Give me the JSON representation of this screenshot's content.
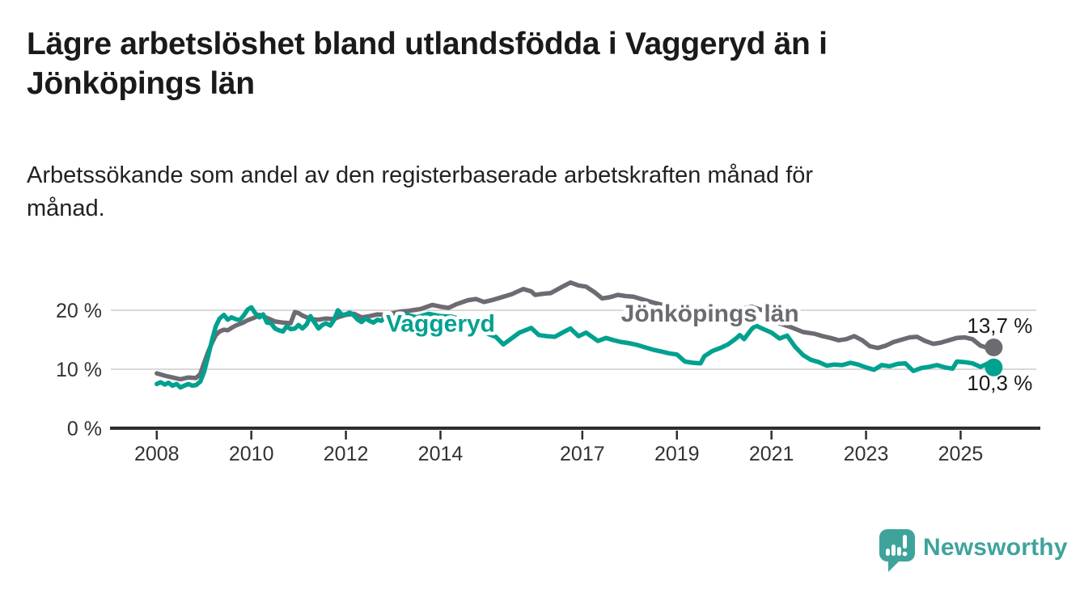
{
  "page": {
    "title": "Lägre arbetslöshet bland utlandsfödda i Vaggeryd än i Jönköpings län",
    "title_lines": [
      "Lägre arbetslöshet bland utlandsfödda i Vaggeryd än i",
      "Jönköpings län"
    ],
    "subtitle": "Arbetssökande som andel av den registerbaserade arbetskraften månad för månad.",
    "subtitle_lines": [
      "Arbetssökande som andel av den registerbaserade arbetskraften månad för",
      "månad."
    ]
  },
  "branding": {
    "name": "Newsworthy",
    "icon": "bar-chart-speech-bubble-icon",
    "color": "#3FA39C"
  },
  "colors": {
    "background": "#FFFFFF",
    "title": "#1A1A1A",
    "subtitle": "#222222",
    "axis_line": "#2E2E31",
    "axis_text": "#333333",
    "grid": "#D9D9D9",
    "value_label": "#1A1A1A"
  },
  "chart_data": {
    "type": "line",
    "x_unit": "decimal_year_monthly",
    "xlim": [
      2007.08,
      2026.6
    ],
    "ylim": [
      0,
      26
    ],
    "grid": "horizontal",
    "y_ticks": [
      {
        "value": 0,
        "label": "0 %"
      },
      {
        "value": 10,
        "label": "10 %"
      },
      {
        "value": 20,
        "label": "20 %"
      }
    ],
    "x_ticks": [
      {
        "value": 2008,
        "label": "2008"
      },
      {
        "value": 2010,
        "label": "2010"
      },
      {
        "value": 2012,
        "label": "2012"
      },
      {
        "value": 2014,
        "label": "2014"
      },
      {
        "value": 2017,
        "label": "2017"
      },
      {
        "value": 2019,
        "label": "2019"
      },
      {
        "value": 2021,
        "label": "2021"
      },
      {
        "value": 2023,
        "label": "2023"
      },
      {
        "value": 2025,
        "label": "2025"
      }
    ],
    "series": [
      {
        "name": "Jönköpings län",
        "color": "#6E6A71",
        "label_pos": {
          "x": 2019.7,
          "y": 19.6
        },
        "end_value": 13.7,
        "end_label": "13,7 %",
        "end_label_side": "above",
        "points": [
          [
            2008.0,
            9.3
          ],
          [
            2008.17,
            8.9
          ],
          [
            2008.33,
            8.6
          ],
          [
            2008.5,
            8.3
          ],
          [
            2008.67,
            8.6
          ],
          [
            2008.83,
            8.5
          ],
          [
            2008.92,
            9.2
          ],
          [
            2009.0,
            11.0
          ],
          [
            2009.08,
            12.8
          ],
          [
            2009.17,
            14.5
          ],
          [
            2009.25,
            15.8
          ],
          [
            2009.33,
            16.4
          ],
          [
            2009.42,
            16.7
          ],
          [
            2009.5,
            16.6
          ],
          [
            2009.58,
            17.0
          ],
          [
            2009.67,
            17.4
          ],
          [
            2009.83,
            17.9
          ],
          [
            2009.92,
            18.3
          ],
          [
            2010.08,
            18.8
          ],
          [
            2010.17,
            19.2
          ],
          [
            2010.33,
            18.7
          ],
          [
            2010.5,
            18.1
          ],
          [
            2010.67,
            17.9
          ],
          [
            2010.83,
            17.8
          ],
          [
            2010.92,
            19.7
          ],
          [
            2011.0,
            19.5
          ],
          [
            2011.08,
            19.1
          ],
          [
            2011.17,
            18.8
          ],
          [
            2011.25,
            18.5
          ],
          [
            2011.42,
            18.4
          ],
          [
            2011.58,
            18.6
          ],
          [
            2011.75,
            18.5
          ],
          [
            2011.83,
            18.8
          ],
          [
            2012.0,
            19.2
          ],
          [
            2012.17,
            19.4
          ],
          [
            2012.33,
            18.8
          ],
          [
            2012.5,
            19.0
          ],
          [
            2012.67,
            19.3
          ],
          [
            2012.83,
            19.2
          ],
          [
            2013.0,
            19.5
          ],
          [
            2013.17,
            19.8
          ],
          [
            2013.33,
            19.9
          ],
          [
            2013.58,
            20.2
          ],
          [
            2013.83,
            20.9
          ],
          [
            2014.0,
            20.6
          ],
          [
            2014.17,
            20.4
          ],
          [
            2014.33,
            21.0
          ],
          [
            2014.58,
            21.7
          ],
          [
            2014.75,
            21.9
          ],
          [
            2014.92,
            21.4
          ],
          [
            2015.08,
            21.7
          ],
          [
            2015.25,
            22.1
          ],
          [
            2015.5,
            22.7
          ],
          [
            2015.75,
            23.6
          ],
          [
            2015.92,
            23.2
          ],
          [
            2016.0,
            22.6
          ],
          [
            2016.17,
            22.8
          ],
          [
            2016.33,
            22.9
          ],
          [
            2016.58,
            24.0
          ],
          [
            2016.75,
            24.7
          ],
          [
            2016.92,
            24.2
          ],
          [
            2017.08,
            24.0
          ],
          [
            2017.25,
            23.1
          ],
          [
            2017.42,
            22.0
          ],
          [
            2017.58,
            22.2
          ],
          [
            2017.75,
            22.6
          ],
          [
            2017.92,
            22.4
          ],
          [
            2018.08,
            22.3
          ],
          [
            2018.5,
            21.3
          ],
          [
            2019.0,
            20.3
          ],
          [
            2019.42,
            19.3
          ],
          [
            2019.83,
            18.8
          ],
          [
            2020.08,
            19.3
          ],
          [
            2020.42,
            20.3
          ],
          [
            2020.58,
            20.6
          ],
          [
            2020.92,
            19.7
          ],
          [
            2021.0,
            18.9
          ],
          [
            2021.17,
            17.8
          ],
          [
            2021.42,
            17.1
          ],
          [
            2021.67,
            16.3
          ],
          [
            2021.92,
            16.0
          ],
          [
            2022.08,
            15.6
          ],
          [
            2022.25,
            15.3
          ],
          [
            2022.42,
            14.9
          ],
          [
            2022.58,
            15.1
          ],
          [
            2022.75,
            15.6
          ],
          [
            2022.92,
            14.9
          ],
          [
            2023.08,
            13.9
          ],
          [
            2023.25,
            13.6
          ],
          [
            2023.42,
            14.0
          ],
          [
            2023.58,
            14.6
          ],
          [
            2023.75,
            15.0
          ],
          [
            2023.92,
            15.4
          ],
          [
            2024.08,
            15.5
          ],
          [
            2024.25,
            14.8
          ],
          [
            2024.42,
            14.3
          ],
          [
            2024.58,
            14.5
          ],
          [
            2024.75,
            14.9
          ],
          [
            2024.92,
            15.3
          ],
          [
            2025.08,
            15.4
          ],
          [
            2025.25,
            15.1
          ],
          [
            2025.42,
            14.0
          ],
          [
            2025.58,
            13.6
          ],
          [
            2025.7,
            13.7
          ]
        ]
      },
      {
        "name": "Vaggeryd",
        "color": "#00A18F",
        "label_pos": {
          "x": 2014.0,
          "y": 17.9
        },
        "end_value": 10.3,
        "end_label": "10,3 %",
        "end_label_side": "below",
        "points": [
          [
            2008.0,
            7.5
          ],
          [
            2008.08,
            7.8
          ],
          [
            2008.17,
            7.4
          ],
          [
            2008.25,
            7.7
          ],
          [
            2008.33,
            7.2
          ],
          [
            2008.42,
            7.5
          ],
          [
            2008.5,
            6.9
          ],
          [
            2008.58,
            7.2
          ],
          [
            2008.67,
            7.5
          ],
          [
            2008.75,
            7.2
          ],
          [
            2008.83,
            7.3
          ],
          [
            2008.92,
            7.9
          ],
          [
            2009.0,
            9.5
          ],
          [
            2009.08,
            12.0
          ],
          [
            2009.17,
            15.0
          ],
          [
            2009.25,
            17.3
          ],
          [
            2009.33,
            18.6
          ],
          [
            2009.42,
            19.2
          ],
          [
            2009.5,
            18.4
          ],
          [
            2009.58,
            18.8
          ],
          [
            2009.67,
            18.5
          ],
          [
            2009.75,
            18.3
          ],
          [
            2009.83,
            19.0
          ],
          [
            2009.92,
            20.1
          ],
          [
            2010.0,
            20.5
          ],
          [
            2010.08,
            19.5
          ],
          [
            2010.17,
            18.8
          ],
          [
            2010.25,
            19.3
          ],
          [
            2010.33,
            17.9
          ],
          [
            2010.42,
            17.8
          ],
          [
            2010.5,
            16.9
          ],
          [
            2010.58,
            16.6
          ],
          [
            2010.67,
            16.4
          ],
          [
            2010.75,
            17.3
          ],
          [
            2010.83,
            16.8
          ],
          [
            2010.92,
            16.9
          ],
          [
            2011.0,
            17.5
          ],
          [
            2011.08,
            16.9
          ],
          [
            2011.17,
            17.6
          ],
          [
            2011.25,
            19.0
          ],
          [
            2011.33,
            18.0
          ],
          [
            2011.42,
            16.9
          ],
          [
            2011.5,
            17.5
          ],
          [
            2011.58,
            17.8
          ],
          [
            2011.67,
            17.4
          ],
          [
            2011.75,
            18.4
          ],
          [
            2011.83,
            20.0
          ],
          [
            2011.92,
            19.2
          ],
          [
            2012.0,
            19.3
          ],
          [
            2012.08,
            19.6
          ],
          [
            2012.17,
            19.1
          ],
          [
            2012.25,
            18.4
          ],
          [
            2012.33,
            18.0
          ],
          [
            2012.42,
            18.6
          ],
          [
            2012.5,
            18.2
          ],
          [
            2012.58,
            17.9
          ],
          [
            2012.67,
            18.4
          ],
          [
            2012.75,
            18.2
          ],
          [
            2012.83,
            18.8
          ],
          [
            2013.0,
            18.9
          ],
          [
            2013.25,
            19.3
          ],
          [
            2013.5,
            18.8
          ],
          [
            2013.75,
            19.4
          ],
          [
            2014.0,
            19.0
          ],
          [
            2014.25,
            18.9
          ],
          [
            2014.5,
            18.2
          ],
          [
            2014.75,
            17.0
          ],
          [
            2015.0,
            16.0
          ],
          [
            2015.17,
            15.5
          ],
          [
            2015.33,
            14.2
          ],
          [
            2015.5,
            15.2
          ],
          [
            2015.67,
            16.2
          ],
          [
            2015.92,
            17.0
          ],
          [
            2016.08,
            15.8
          ],
          [
            2016.25,
            15.6
          ],
          [
            2016.42,
            15.5
          ],
          [
            2016.58,
            16.2
          ],
          [
            2016.75,
            16.9
          ],
          [
            2016.92,
            15.6
          ],
          [
            2017.08,
            16.2
          ],
          [
            2017.33,
            14.8
          ],
          [
            2017.5,
            15.3
          ],
          [
            2017.67,
            14.9
          ],
          [
            2017.83,
            14.6
          ],
          [
            2018.0,
            14.4
          ],
          [
            2018.17,
            14.1
          ],
          [
            2018.33,
            13.7
          ],
          [
            2018.5,
            13.3
          ],
          [
            2018.67,
            13.0
          ],
          [
            2018.83,
            12.7
          ],
          [
            2019.0,
            12.5
          ],
          [
            2019.17,
            11.3
          ],
          [
            2019.33,
            11.1
          ],
          [
            2019.5,
            11.0
          ],
          [
            2019.58,
            12.2
          ],
          [
            2019.75,
            13.1
          ],
          [
            2019.92,
            13.6
          ],
          [
            2020.08,
            14.2
          ],
          [
            2020.25,
            15.2
          ],
          [
            2020.33,
            15.8
          ],
          [
            2020.42,
            15.1
          ],
          [
            2020.58,
            16.8
          ],
          [
            2020.67,
            17.4
          ],
          [
            2020.83,
            16.8
          ],
          [
            2021.0,
            16.2
          ],
          [
            2021.17,
            15.2
          ],
          [
            2021.33,
            15.7
          ],
          [
            2021.5,
            13.8
          ],
          [
            2021.67,
            12.4
          ],
          [
            2021.83,
            11.6
          ],
          [
            2022.0,
            11.2
          ],
          [
            2022.17,
            10.6
          ],
          [
            2022.33,
            10.8
          ],
          [
            2022.5,
            10.7
          ],
          [
            2022.67,
            11.1
          ],
          [
            2022.83,
            10.8
          ],
          [
            2023.0,
            10.3
          ],
          [
            2023.17,
            9.9
          ],
          [
            2023.33,
            10.7
          ],
          [
            2023.5,
            10.5
          ],
          [
            2023.67,
            10.9
          ],
          [
            2023.83,
            11.0
          ],
          [
            2024.0,
            9.7
          ],
          [
            2024.17,
            10.2
          ],
          [
            2024.33,
            10.4
          ],
          [
            2024.5,
            10.7
          ],
          [
            2024.67,
            10.3
          ],
          [
            2024.83,
            10.1
          ],
          [
            2024.92,
            11.3
          ],
          [
            2025.08,
            11.2
          ],
          [
            2025.25,
            11.0
          ],
          [
            2025.42,
            10.4
          ],
          [
            2025.58,
            11.0
          ],
          [
            2025.7,
            10.3
          ]
        ]
      }
    ]
  }
}
